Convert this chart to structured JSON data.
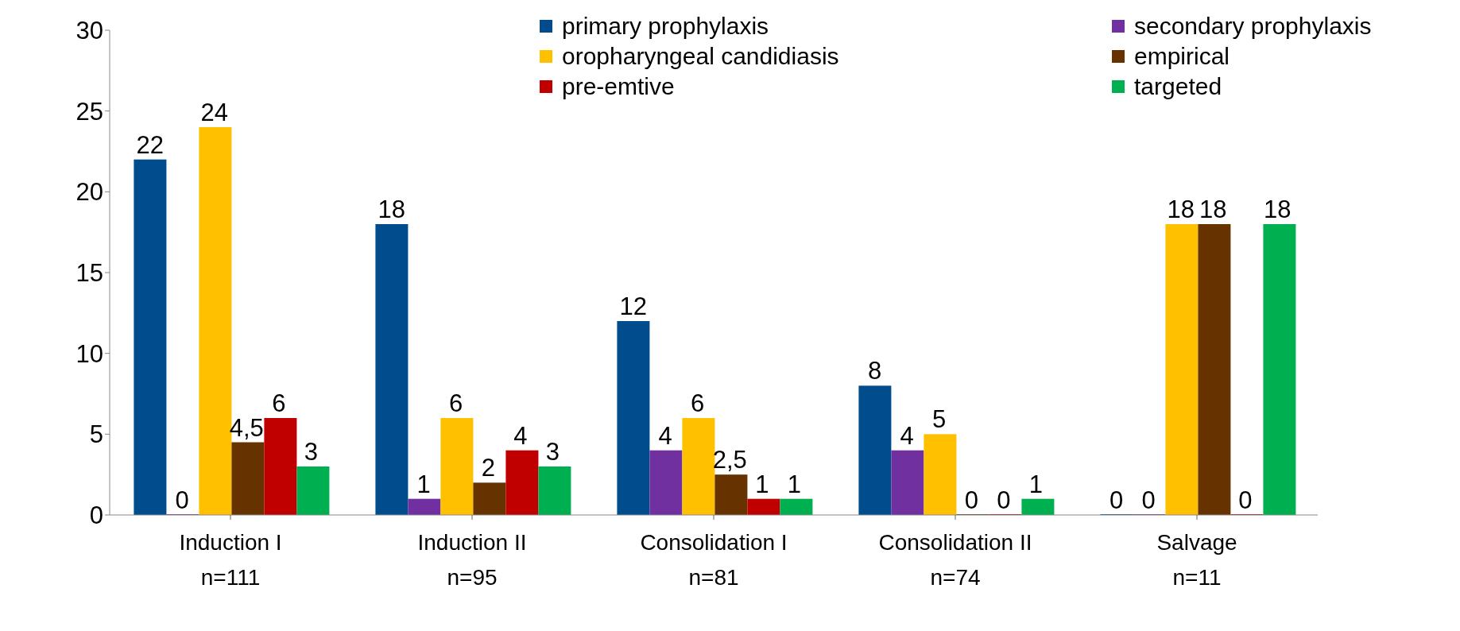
{
  "chart_data": {
    "type": "bar",
    "categories": [
      "Induction I\nn=111",
      "Induction II\nn=95",
      "Consolidation I\nn=81",
      "Consolidation II\nn=74",
      "Salvage\nn=11"
    ],
    "series": [
      {
        "name": "primary prophylaxis",
        "color": "#004c8c",
        "values": [
          22,
          18,
          12,
          8,
          0
        ],
        "value_labels": [
          "22",
          "18",
          "12",
          "8",
          "0"
        ]
      },
      {
        "name": "secondary prophylaxis",
        "color": "#7030a0",
        "values": [
          0,
          1,
          4,
          4,
          0
        ],
        "value_labels": [
          "0",
          "1",
          "4",
          "4",
          "0"
        ]
      },
      {
        "name": "oropharyngeal candidiasis",
        "color": "#ffc000",
        "values": [
          24,
          6,
          6,
          5,
          18
        ],
        "value_labels": [
          "24",
          "6",
          "6",
          "5",
          "18"
        ]
      },
      {
        "name": "empirical",
        "color": "#663300",
        "values": [
          4.5,
          2,
          2.5,
          0,
          18
        ],
        "value_labels": [
          "4,5",
          "2",
          "2,5",
          "0",
          "18"
        ]
      },
      {
        "name": "pre-emtive",
        "color": "#c00000",
        "values": [
          6,
          4,
          1,
          0,
          0
        ],
        "value_labels": [
          "6",
          "4",
          "1",
          "0",
          "0"
        ]
      },
      {
        "name": "targeted",
        "color": "#00b050",
        "values": [
          3,
          3,
          1,
          1,
          18
        ],
        "value_labels": [
          "3",
          "3",
          "1",
          "1",
          "18"
        ]
      }
    ],
    "ylim": [
      0,
      30
    ],
    "yticks": [
      0,
      5,
      10,
      15,
      20,
      25,
      30
    ],
    "grid": false,
    "legend": "top right"
  }
}
